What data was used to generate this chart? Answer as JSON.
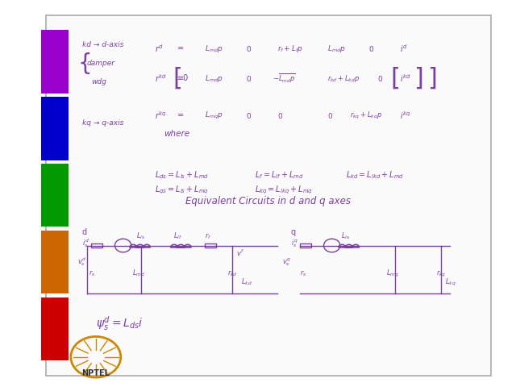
{
  "bg_color": "#ffffff",
  "slide_bg": "#f5f5f0",
  "border_color": "#cccccc",
  "ink_color": "#7B3FA0",
  "title_text": "Equivalent Circuits in d and q axes",
  "where_text": "where",
  "equations_top": [
    "L\\mathregular{ds} = L\\mathregular{ls} + L\\mathregular{md}",
    "L\\mathregular{qs} = L\\mathregular{ls} + L\\mathregular{mq}",
    "L\\mathregular{f} = L\\mathregular{lf} + L\\mathregular{md}",
    "L\\mathregular{kq} = L\\mathregular{lkq} + L\\mathregular{mq}",
    "L\\mathregular{kd} = L\\mathregular{lkd} + L\\mathregular{md}"
  ],
  "left_label": "kd → d-axis\n  damper\n    wdg",
  "left_label2": "kq → q-axis",
  "bottom_eq": "ψ\\mathregular{s}\\mathregular{d} = L\\mathregular{ds}i",
  "nptel_text": "NPTEL",
  "fig_width": 6.4,
  "fig_height": 4.8,
  "dpi": 100
}
